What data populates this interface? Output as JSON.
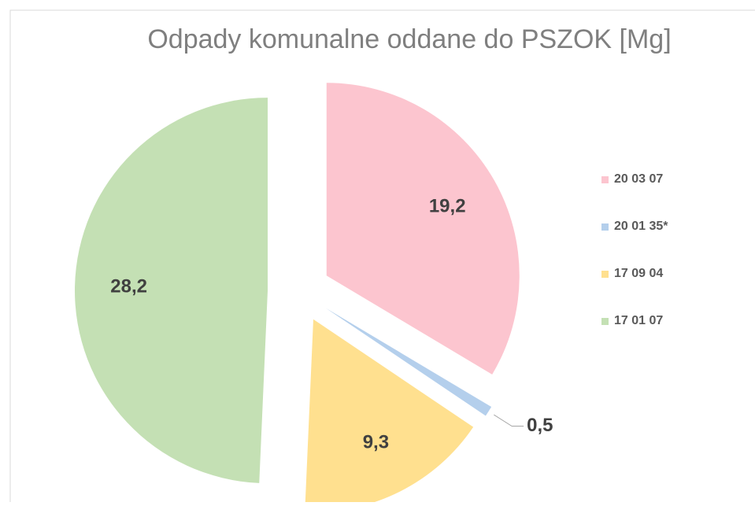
{
  "chart_data": {
    "type": "pie",
    "title": "Odpady komunalne oddane do PSZOK [Mg]",
    "categories": [
      "20 03 07",
      "20 01 35*",
      "17 09 04",
      "17 01 07"
    ],
    "values": [
      19.2,
      0.5,
      9.3,
      28.2
    ],
    "value_labels": [
      "19,2",
      "0,5",
      "9,3",
      "28,2"
    ],
    "colors": [
      "#fcc5cf",
      "#b4cfec",
      "#ffe08f",
      "#c4e0b4"
    ],
    "legend": "right"
  }
}
